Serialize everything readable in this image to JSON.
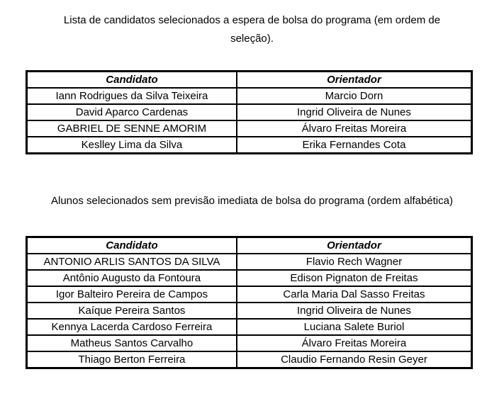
{
  "page": {
    "background_color": "#ffffff",
    "text_color": "#000000",
    "border_color": "#000000"
  },
  "sections": [
    {
      "name": "waitlist",
      "title_lines": [
        "Lista de candidatos selecionados a espera de bolsa do programa (em ordem de",
        "seleção)."
      ],
      "table": {
        "headers": [
          "Candidato",
          "Orientador"
        ],
        "rows": [
          [
            "Iann Rodrigues da Silva Teixeira",
            "Marcio Dorn"
          ],
          [
            "David Aparco Cardenas",
            "Ingrid Oliveira de Nunes"
          ],
          [
            "GABRIEL DE SENNE AMORIM",
            "Álvaro Freitas Moreira"
          ],
          [
            "Keslley Lima da Silva",
            "Erika Fernandes Cota"
          ]
        ]
      }
    },
    {
      "name": "no-scholarship-forecast",
      "title_lines": [
        "Alunos selecionados sem previsão imediata de bolsa do programa (ordem alfabética)"
      ],
      "table": {
        "headers": [
          "Candidato",
          "Orientador"
        ],
        "rows": [
          [
            "ANTONIO ARLIS SANTOS DA SILVA",
            "Flavio Rech Wagner"
          ],
          [
            "Antônio Augusto da Fontoura",
            "Edison Pignaton de Freitas"
          ],
          [
            "Igor Balteiro Pereira de Campos",
            "Carla Maria Dal Sasso Freitas"
          ],
          [
            "Kaíque Pereira Santos",
            "Ingrid Oliveira de Nunes"
          ],
          [
            "Kennya Lacerda Cardoso Ferreira",
            "Luciana Salete Buriol"
          ],
          [
            "Matheus Santos Carvalho",
            "Álvaro Freitas Moreira"
          ],
          [
            "Thiago Berton Ferreira",
            "Claudio Fernando Resin Geyer"
          ]
        ]
      }
    }
  ]
}
